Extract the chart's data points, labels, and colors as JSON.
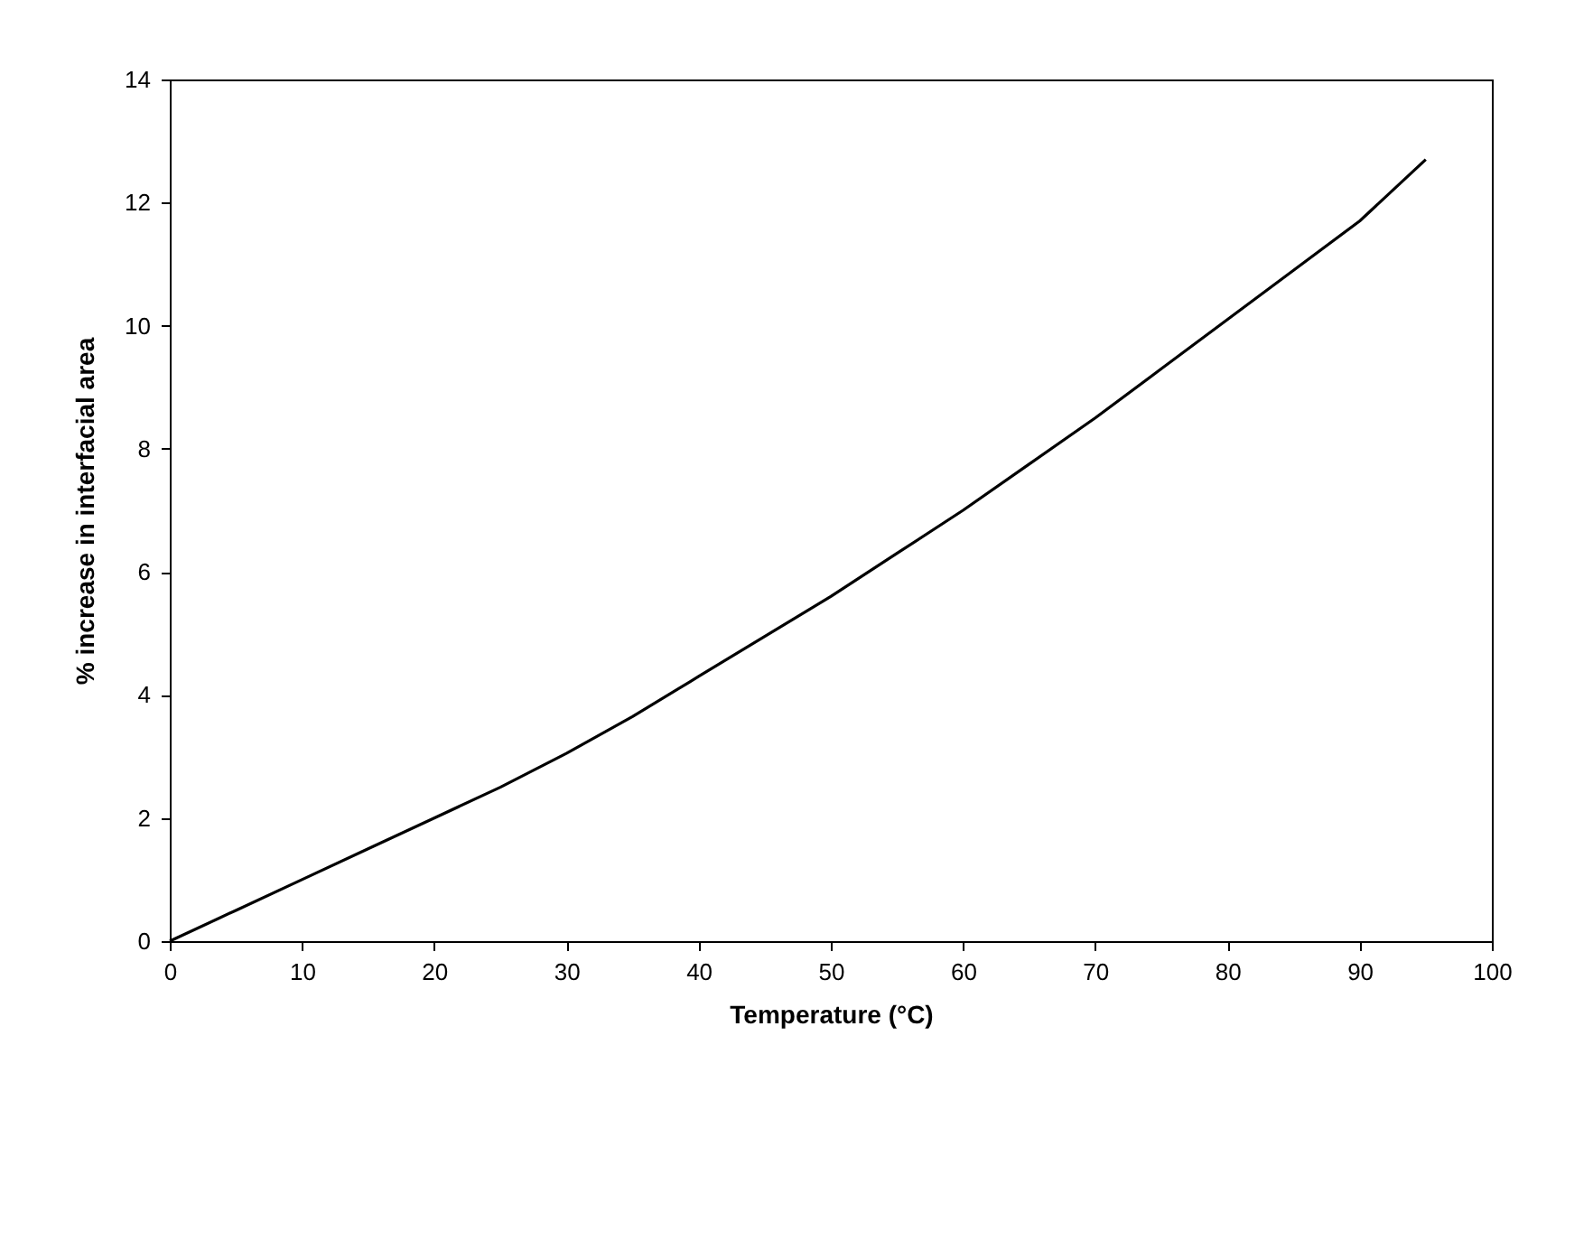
{
  "chart_data": {
    "type": "line",
    "xlabel": "Temperature (°C)",
    "ylabel": "% increase in interfacial area",
    "x": [
      0,
      5,
      10,
      15,
      20,
      25,
      30,
      35,
      40,
      45,
      50,
      55,
      60,
      65,
      70,
      75,
      80,
      85,
      90,
      95
    ],
    "series": [
      {
        "color": "#000000",
        "values": [
          0,
          0.5,
          1.0,
          1.5,
          2.0,
          2.5,
          3.05,
          3.65,
          4.3,
          4.95,
          5.6,
          6.3,
          7.0,
          7.75,
          8.5,
          9.3,
          10.1,
          10.9,
          11.7,
          12.7
        ]
      }
    ],
    "xlim": [
      0,
      100
    ],
    "xticks": [
      0,
      10,
      20,
      30,
      40,
      50,
      60,
      70,
      80,
      90,
      100
    ],
    "ylim": [
      0,
      14
    ],
    "yticks": [
      0,
      2,
      4,
      6,
      8,
      10,
      12,
      14
    ],
    "grid": false,
    "marker": "none",
    "line_style": "solid"
  }
}
